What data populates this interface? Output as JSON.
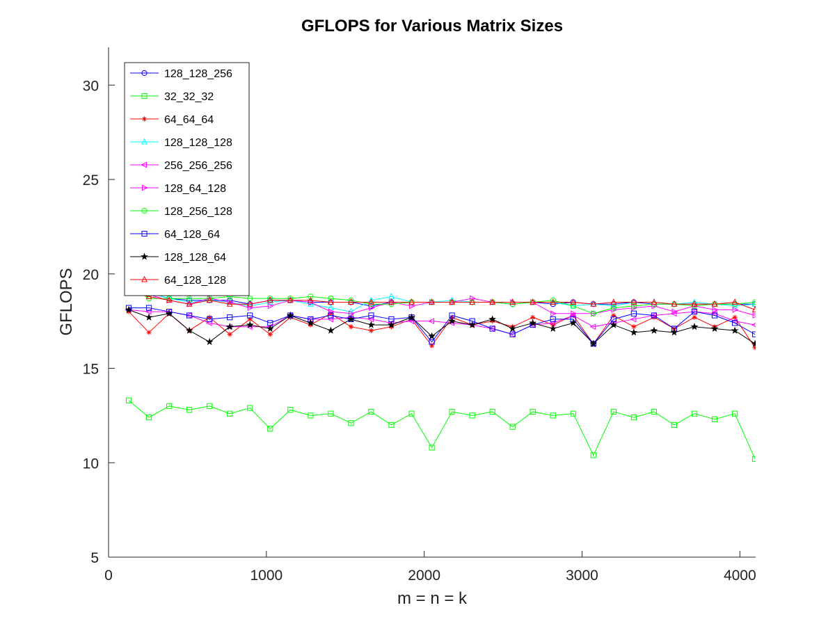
{
  "chart_data": {
    "type": "line",
    "title": "GFLOPS for Various Matrix Sizes",
    "xlabel": "m = n = k",
    "ylabel": "GFLOPS",
    "xlim": [
      0,
      4100
    ],
    "ylim": [
      5,
      32
    ],
    "xticks": [
      0,
      1000,
      2000,
      3000,
      4000
    ],
    "yticks": [
      5,
      10,
      15,
      20,
      25,
      30
    ],
    "grid": false,
    "legend_position": "top-left",
    "x": [
      128,
      256,
      384,
      512,
      640,
      768,
      896,
      1024,
      1152,
      1280,
      1408,
      1536,
      1664,
      1792,
      1920,
      2048,
      2176,
      2304,
      2432,
      2560,
      2688,
      2816,
      2944,
      3072,
      3200,
      3328,
      3456,
      3584,
      3712,
      3840,
      3968,
      4096
    ],
    "series": [
      {
        "name": "128_128_256",
        "color": "#0000ff",
        "marker": "circle",
        "values": [
          19.5,
          19.0,
          18.7,
          18.6,
          18.6,
          18.6,
          18.4,
          18.6,
          18.6,
          18.5,
          18.5,
          18.5,
          18.3,
          18.5,
          18.5,
          18.5,
          18.5,
          18.5,
          18.5,
          18.4,
          18.5,
          18.4,
          18.5,
          18.4,
          18.4,
          18.5,
          18.4,
          18.4,
          18.4,
          18.4,
          18.4,
          18.4
        ]
      },
      {
        "name": "32_32_32",
        "color": "#00ff00",
        "marker": "square",
        "values": [
          13.3,
          12.4,
          13.0,
          12.8,
          13.0,
          12.6,
          12.9,
          11.8,
          12.8,
          12.5,
          12.6,
          12.1,
          12.7,
          12.0,
          12.6,
          10.8,
          12.7,
          12.5,
          12.7,
          11.9,
          12.7,
          12.5,
          12.6,
          10.4,
          12.7,
          12.4,
          12.7,
          12.0,
          12.6,
          12.3,
          12.6,
          10.2
        ]
      },
      {
        "name": "64_64_64",
        "color": "#ff0000",
        "marker": "star",
        "values": [
          18.0,
          16.9,
          17.9,
          17.0,
          17.7,
          16.8,
          17.6,
          16.8,
          17.7,
          17.3,
          17.9,
          17.2,
          17.0,
          17.2,
          17.6,
          16.2,
          17.7,
          17.3,
          17.5,
          17.2,
          17.7,
          17.3,
          17.8,
          16.3,
          17.8,
          17.2,
          17.7,
          17.1,
          17.7,
          17.2,
          17.7,
          16.1
        ]
      },
      {
        "name": "128_128_128",
        "color": "#00ffff",
        "marker": "triangle-up",
        "values": [
          19.6,
          19.0,
          18.7,
          18.5,
          18.6,
          18.5,
          18.3,
          18.5,
          18.6,
          18.4,
          18.2,
          18.0,
          18.6,
          18.8,
          18.5,
          18.5,
          18.6,
          18.5,
          18.5,
          18.5,
          18.5,
          18.5,
          18.3,
          18.4,
          18.3,
          18.5,
          18.5,
          18.4,
          18.5,
          18.4,
          18.3,
          18.4
        ]
      },
      {
        "name": "256_256_256",
        "color": "#ff00ff",
        "marker": "triangle-left",
        "values": [
          18.1,
          18.0,
          18.0,
          17.8,
          17.4,
          17.2,
          17.2,
          17.2,
          17.8,
          17.6,
          17.6,
          17.7,
          17.6,
          17.4,
          17.5,
          17.5,
          17.4,
          17.3,
          17.1,
          16.8,
          17.3,
          17.4,
          17.8,
          17.2,
          17.4,
          17.6,
          17.8,
          17.9,
          18.0,
          17.9,
          17.5,
          17.3
        ]
      },
      {
        "name": "128_64_128",
        "color": "#ff00ff",
        "marker": "triangle-right",
        "values": [
          19.4,
          18.9,
          18.6,
          18.4,
          18.7,
          18.5,
          18.2,
          18.3,
          18.6,
          18.5,
          18.0,
          17.9,
          18.2,
          18.5,
          18.3,
          18.5,
          18.5,
          18.7,
          18.5,
          18.5,
          18.5,
          17.9,
          17.9,
          17.9,
          18.1,
          18.2,
          18.3,
          18.0,
          18.3,
          18.1,
          18.1,
          17.8
        ]
      },
      {
        "name": "128_256_128",
        "color": "#00ff00",
        "marker": "circle",
        "values": [
          19.4,
          18.7,
          18.7,
          18.7,
          18.7,
          18.8,
          18.7,
          18.7,
          18.7,
          18.8,
          18.7,
          18.6,
          18.4,
          18.4,
          18.5,
          18.5,
          18.5,
          18.5,
          18.5,
          18.4,
          18.5,
          18.6,
          18.3,
          17.9,
          18.2,
          18.3,
          18.4,
          18.4,
          18.3,
          18.4,
          18.4,
          18.5
        ]
      },
      {
        "name": "64_128_64",
        "color": "#0000ff",
        "marker": "square",
        "values": [
          18.2,
          18.2,
          18.0,
          17.8,
          17.6,
          17.7,
          17.8,
          17.4,
          17.8,
          17.6,
          17.8,
          17.6,
          17.8,
          17.6,
          17.7,
          16.4,
          17.8,
          17.5,
          17.1,
          16.8,
          17.3,
          17.6,
          17.6,
          16.3,
          17.6,
          17.9,
          17.8,
          17.1,
          18.0,
          17.8,
          17.4,
          16.8
        ]
      },
      {
        "name": "128_128_64",
        "color": "#000000",
        "marker": "pentagram",
        "values": [
          18.1,
          17.7,
          17.9,
          17.0,
          16.4,
          17.2,
          17.3,
          17.1,
          17.8,
          17.4,
          17.0,
          17.6,
          17.3,
          17.3,
          17.7,
          16.7,
          17.5,
          17.3,
          17.6,
          17.1,
          17.4,
          17.1,
          17.4,
          16.3,
          17.3,
          16.9,
          17.0,
          16.9,
          17.2,
          17.1,
          17.0,
          16.3
        ]
      },
      {
        "name": "64_128_128",
        "color": "#ff0000",
        "marker": "triangle-up",
        "values": [
          19.0,
          18.8,
          18.6,
          18.4,
          18.6,
          18.4,
          18.4,
          18.6,
          18.6,
          18.6,
          18.5,
          18.5,
          18.5,
          18.5,
          18.5,
          18.5,
          18.5,
          18.5,
          18.5,
          18.5,
          18.5,
          18.5,
          18.5,
          18.4,
          18.5,
          18.5,
          18.5,
          18.4,
          18.4,
          18.4,
          18.5,
          18.1
        ]
      }
    ]
  }
}
